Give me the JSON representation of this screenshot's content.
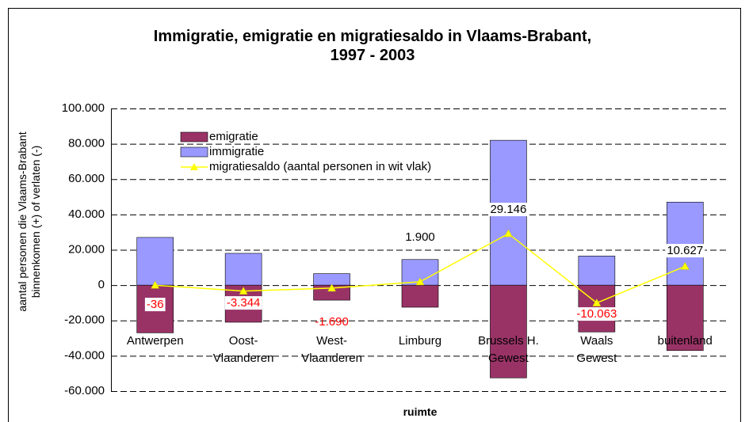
{
  "chart_data": {
    "type": "bar",
    "title": "Immigratie, emigratie en migratiesaldo in Vlaams-Brabant,\n1997 - 2003",
    "x_label": "ruimte",
    "y_label": "aantal personen die Vlaams-Brabant\nbinnenkomen (+) of verlaten (-)",
    "categories": [
      "Antwerpen",
      "Oost-\nVlaanderen",
      "West-\nVlaanderen",
      "Limburg",
      "Brussels H.\nGewest",
      "Waals\nGewest",
      "buitenland"
    ],
    "series": [
      {
        "name": "emigratie",
        "type": "bar",
        "color": "#993366",
        "values": [
          -27000,
          -21000,
          -8500,
          -12500,
          -52500,
          -26500,
          -37000
        ]
      },
      {
        "name": "immigratie",
        "type": "bar",
        "color": "#9999ff",
        "values": [
          27000,
          18000,
          6500,
          14500,
          82000,
          16500,
          47000
        ]
      },
      {
        "name": "migratiesaldo (aantal personen in wit vlak)",
        "type": "line",
        "color": "#ffff00",
        "values": [
          -36,
          -3344,
          -1690,
          1900,
          29146,
          -10063,
          10627
        ],
        "value_labels": [
          "-36",
          "-3.344",
          "-1.690",
          "1.900",
          "29.146",
          "-10.063",
          "10.627"
        ]
      }
    ],
    "ylim": [
      -60000,
      100000
    ],
    "yticks": [
      {
        "value": -60000,
        "label": "-60.000"
      },
      {
        "value": -40000,
        "label": "-40.000"
      },
      {
        "value": -20000,
        "label": "-20.000"
      },
      0,
      {
        "value": 20000,
        "label": "20.000"
      },
      {
        "value": 40000,
        "label": "40.000"
      },
      {
        "value": 60000,
        "label": "60.000"
      },
      {
        "value": 80000,
        "label": "80.000"
      },
      {
        "value": 100000,
        "label": "100.000"
      }
    ],
    "grid": true,
    "legend": "upper left"
  }
}
